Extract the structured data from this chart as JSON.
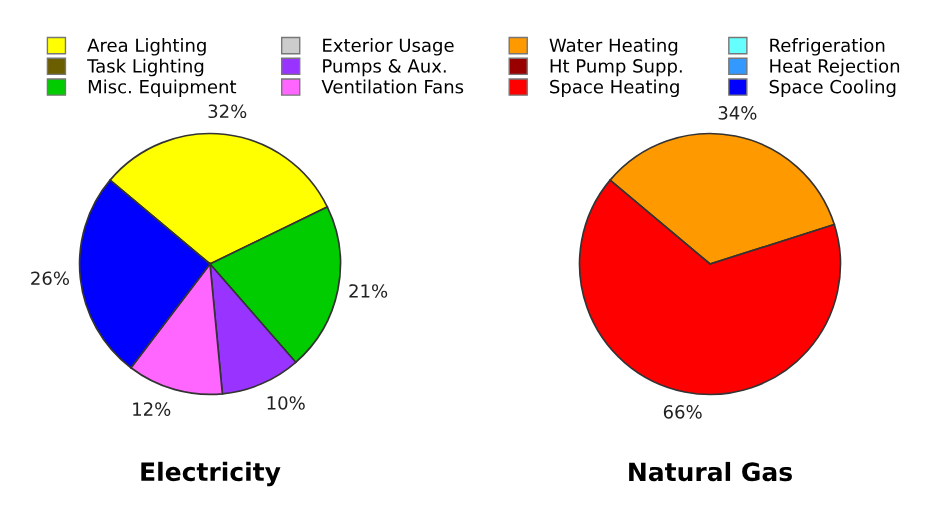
{
  "chart_data": [
    {
      "type": "pie",
      "title": "Electricity",
      "legend": "top",
      "categories": [
        "Area Lighting",
        "Task Lighting",
        "Misc. Equipment",
        "Exterior Usage",
        "Pumps & Aux.",
        "Ventilation Fans",
        "Refrigeration",
        "Heat Rejection",
        "Space Cooling"
      ],
      "colors": [
        "#ffff00",
        "#6b5e00",
        "#00cc00",
        "#cccccc",
        "#9933ff",
        "#ff66ff",
        "#66ffff",
        "#3399ff",
        "#0000ff"
      ],
      "values": [
        32,
        0,
        21,
        0,
        10,
        12,
        0,
        0,
        26
      ],
      "value_labels": [
        "32%",
        null,
        "21%",
        null,
        "10%",
        "12%",
        null,
        null,
        "26%"
      ]
    },
    {
      "type": "pie",
      "title": "Natural Gas",
      "legend": "top",
      "categories": [
        "Water Heating",
        "Ht Pump Supp.",
        "Space Heating"
      ],
      "colors": [
        "#ff9900",
        "#990000",
        "#ff0000"
      ],
      "values": [
        34,
        0,
        66
      ],
      "value_labels": [
        "34%",
        null,
        "66%"
      ]
    }
  ]
}
